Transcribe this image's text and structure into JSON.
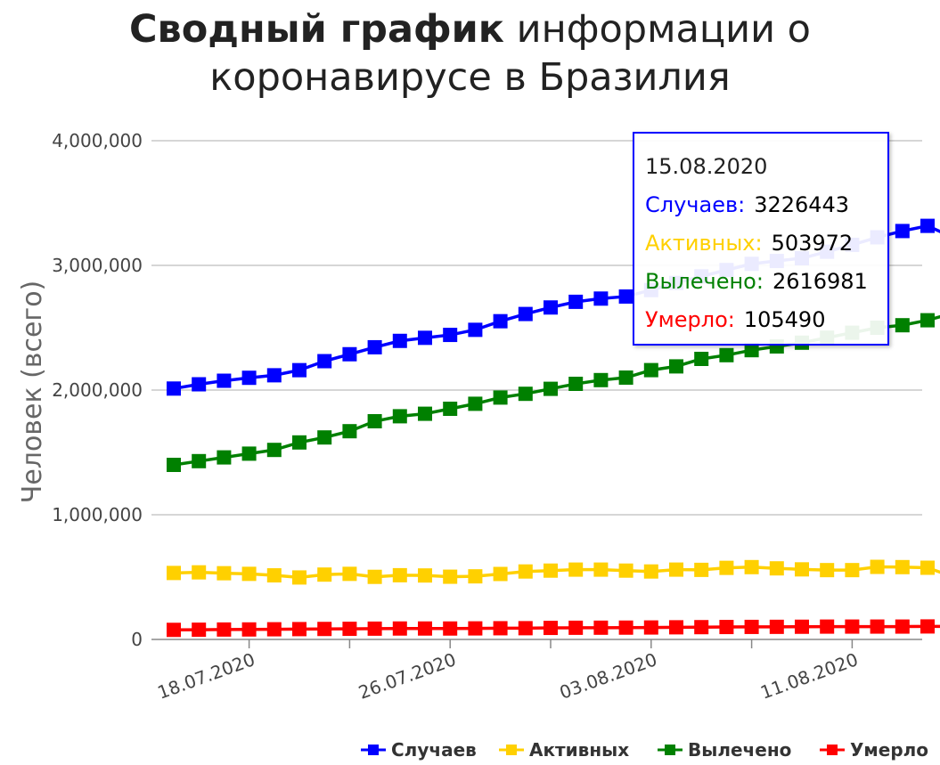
{
  "title": {
    "bold": "Сводный график",
    "line1_rest": " информации о",
    "line2": "коронавирусе в Бразилия"
  },
  "chart_data": {
    "type": "line",
    "ylabel": "Человек (всего)",
    "xlabel": "",
    "ylim": [
      0,
      4000000
    ],
    "yticks": [
      0,
      1000000,
      2000000,
      3000000,
      4000000
    ],
    "ytick_labels": [
      "0",
      "1,000,000",
      "2,000,000",
      "3,000,000",
      "4,000,000"
    ],
    "xtick_labels": [
      "18.07.2020",
      "26.07.2020",
      "03.08.2020",
      "11.08.2020"
    ],
    "x": [
      "15.07.2020",
      "16.07.2020",
      "17.07.2020",
      "18.07.2020",
      "19.07.2020",
      "20.07.2020",
      "21.07.2020",
      "22.07.2020",
      "23.07.2020",
      "24.07.2020",
      "25.07.2020",
      "26.07.2020",
      "27.07.2020",
      "28.07.2020",
      "29.07.2020",
      "30.07.2020",
      "31.07.2020",
      "01.08.2020",
      "02.08.2020",
      "03.08.2020",
      "04.08.2020",
      "05.08.2020",
      "06.08.2020",
      "07.08.2020",
      "08.08.2020",
      "09.08.2020",
      "10.08.2020",
      "11.08.2020",
      "12.08.2020",
      "13.08.2020",
      "14.08.2020",
      "15.08.2020"
    ],
    "grid": true,
    "legend_position": "bottom-right",
    "series": [
      {
        "name": "Случаев",
        "color": "#0000ff",
        "values": [
          2012151,
          2046328,
          2074860,
          2098389,
          2118646,
          2159654,
          2231871,
          2287475,
          2343366,
          2394513,
          2419091,
          2442375,
          2483191,
          2552265,
          2610102,
          2662485,
          2707877,
          2733677,
          2750318,
          2801921,
          2859073,
          2912212,
          2962442,
          3012412,
          3035422,
          3057470,
          3109630,
          3164785,
          3224876,
          3275520,
          3317096,
          3226443
        ]
      },
      {
        "name": "Активных",
        "color": "#ffd000",
        "values": [
          533000,
          538000,
          531000,
          526000,
          514000,
          497000,
          520000,
          526000,
          502000,
          515000,
          513000,
          503000,
          506000,
          525000,
          545000,
          552000,
          560000,
          560000,
          552000,
          545000,
          560000,
          558000,
          574000,
          580000,
          570000,
          562000,
          556000,
          556000,
          582000,
          580000,
          575000,
          503972
        ]
      },
      {
        "name": "Вылечено",
        "color": "#008000",
        "values": [
          1400000,
          1430000,
          1460000,
          1490000,
          1520000,
          1580000,
          1620000,
          1670000,
          1750000,
          1790000,
          1810000,
          1850000,
          1890000,
          1940000,
          1970000,
          2010000,
          2050000,
          2080000,
          2100000,
          2160000,
          2190000,
          2250000,
          2280000,
          2320000,
          2350000,
          2380000,
          2420000,
          2460000,
          2500000,
          2520000,
          2560000,
          2616981
        ]
      },
      {
        "name": "Умерло",
        "color": "#ff0000",
        "values": [
          76688,
          77932,
          79488,
          80120,
          81487,
          82771,
          84082,
          85238,
          86449,
          87618,
          87618,
          87618,
          88539,
          89740,
          90134,
          92475,
          93563,
          94130,
          94665,
          95819,
          97256,
          98493,
          99572,
          100477,
          101049,
          101752,
          102888,
          103026,
          103099,
          103099,
          104201,
          105490
        ]
      }
    ]
  },
  "tooltip": {
    "date": "15.08.2020",
    "rows": [
      {
        "label": "Случаев:",
        "value": "3226443",
        "color": "#0000ff"
      },
      {
        "label": "Активных:",
        "value": "503972",
        "color": "#ffd000"
      },
      {
        "label": "Вылечено:",
        "value": "2616981",
        "color": "#008000"
      },
      {
        "label": "Умерло:",
        "value": "105490",
        "color": "#ff0000"
      }
    ]
  }
}
